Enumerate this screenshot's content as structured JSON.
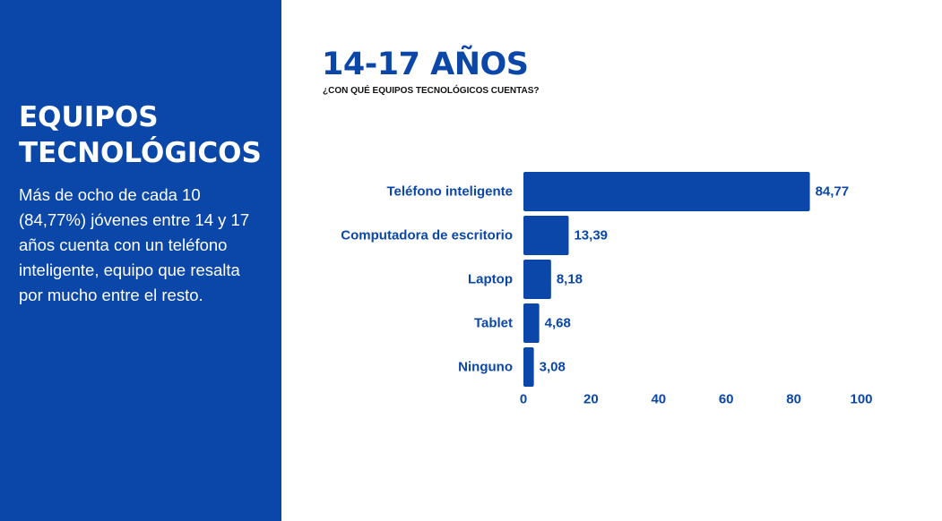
{
  "left_panel": {
    "title": "EQUIPOS TECNOLÓGICOS",
    "description": "Más de ocho de cada 10 (84,77%) jóvenes entre 14 y 17 años cuenta con un teléfono inteligente, equipo que resalta por mucho entre el resto.",
    "background_color": "#0a47a8"
  },
  "chart_data": {
    "type": "bar",
    "orientation": "horizontal",
    "title": "14-17 AÑOS",
    "subtitle": "¿CON QUÉ EQUIPOS TECNOLÓGICOS CUENTAS?",
    "categories": [
      "Teléfono inteligente",
      "Computadora de escritorio",
      "Laptop",
      "Tablet",
      "Ninguno"
    ],
    "values": [
      84.77,
      13.39,
      8.18,
      4.68,
      3.08
    ],
    "value_labels": [
      "84,77",
      "13,39",
      "8,18",
      "4,68",
      "3,08"
    ],
    "xlim": [
      0,
      100
    ],
    "ticks": [
      0,
      20,
      40,
      60,
      80,
      100
    ],
    "grid": false,
    "bar_color": "#0a47a8"
  }
}
